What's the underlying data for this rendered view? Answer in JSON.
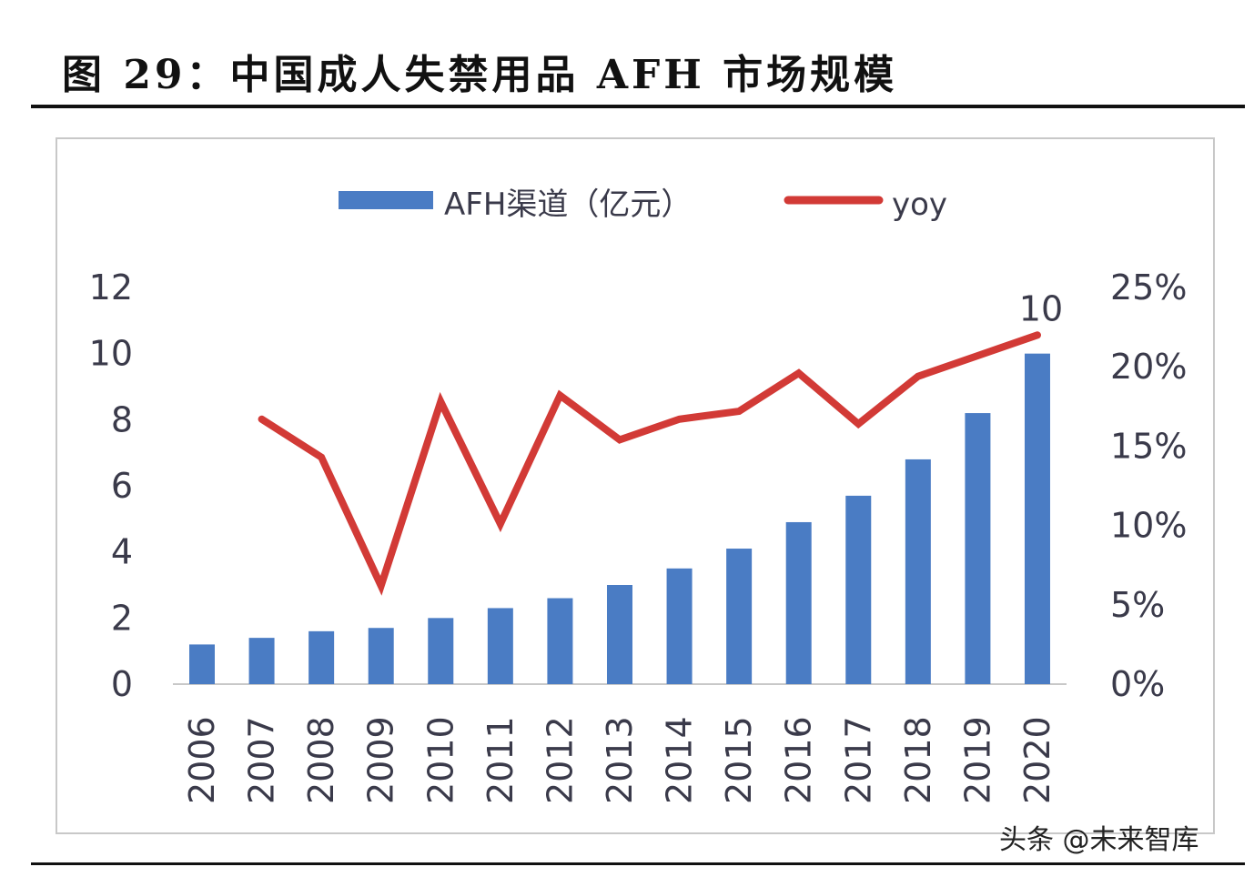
{
  "title": "图 29：中国成人失禁用品 AFH 市场规模",
  "watermark": "头条 @未来智库",
  "chart_data": {
    "type": "bar+line",
    "categories": [
      "2006",
      "2007",
      "2008",
      "2009",
      "2010",
      "2011",
      "2012",
      "2013",
      "2014",
      "2015",
      "2016",
      "2017",
      "2018",
      "2019",
      "2020"
    ],
    "series": [
      {
        "name": "AFH渠道（亿元）",
        "type": "bar",
        "axis": "left",
        "color": "#4a7cc4",
        "values": [
          1.2,
          1.4,
          1.6,
          1.7,
          2.0,
          2.3,
          2.6,
          3.0,
          3.5,
          4.1,
          4.9,
          5.7,
          6.8,
          8.2,
          10.0
        ]
      },
      {
        "name": "yoy",
        "type": "line",
        "axis": "right",
        "color": "#d23a36",
        "values": [
          null,
          16.7,
          14.3,
          6.2,
          17.8,
          10.1,
          18.2,
          15.4,
          16.7,
          17.2,
          19.6,
          16.4,
          19.4,
          20.7,
          22.0
        ]
      }
    ],
    "data_labels": [
      {
        "category": "2020",
        "text": "10"
      }
    ],
    "left_axis": {
      "ylim": [
        0,
        12
      ],
      "ticks": [
        "0",
        "2",
        "4",
        "6",
        "8",
        "10",
        "12"
      ]
    },
    "right_axis": {
      "ylim": [
        0,
        25
      ],
      "ticks": [
        "0%",
        "5%",
        "10%",
        "15%",
        "20%",
        "25%"
      ]
    },
    "legend_position": "top",
    "grid": false
  }
}
